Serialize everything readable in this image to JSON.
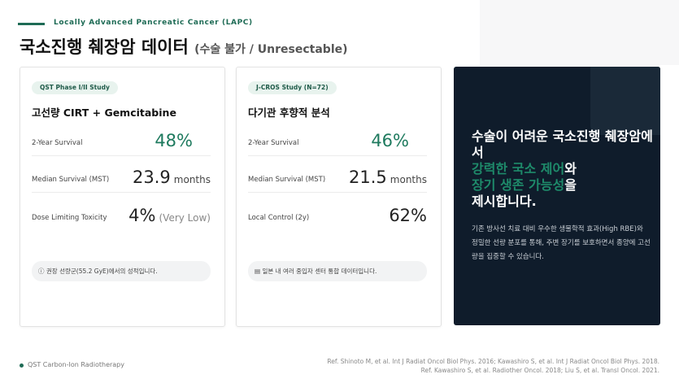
{
  "header": {
    "kicker": "Locally Advanced Pancreatic Cancer (LAPC)",
    "title": "국소진행 췌장암 데이터",
    "subtitle": "(수술 불가 / Unresectable)"
  },
  "cards": [
    {
      "badge": "QST Phase I/II Study",
      "heading": "고선량 CIRT + Gemcitabine",
      "rows": [
        {
          "label": "2-Year Survival",
          "value": "48%"
        },
        {
          "label": "Median Survival (MST)",
          "value": "23.9",
          "unit": "months"
        },
        {
          "label": "Dose Limiting Toxicity",
          "value": "4%",
          "unit": "(Very Low)"
        }
      ],
      "note": "ⓘ 권장 선량군(55.2 GyE)에서의 성적입니다."
    },
    {
      "badge": "J-CROS Study (N=72)",
      "heading": "다기관 후향적 분석",
      "rows": [
        {
          "label": "2-Year Survival",
          "value": "46%"
        },
        {
          "label": "Median Survival (MST)",
          "value": "21.5",
          "unit": "months"
        },
        {
          "label": "Local Control (2y)",
          "value": "62%"
        }
      ],
      "note": "▤ 일본 내 여러 중입자 센터 통합 데이터입니다."
    }
  ],
  "panel": {
    "lead_1": "수술이 어려운 국소진행 췌장암에서",
    "lead_2a": "강력한 국소 제어",
    "lead_2b": "와",
    "lead_3a": "장기 생존 가능성",
    "lead_3b": "을",
    "lead_4": "제시합니다.",
    "body": "기존 방사선 치료 대비 우수한 생물학적 효과(High RBE)와 정밀한 선량 분포를 통해, 주변 장기를 보호하면서 종양에 고선량을 집중할 수 있습니다."
  },
  "footer": {
    "label": "QST Carbon-Ion Radiotherapy",
    "refs": [
      "Ref. Shinoto M, et al. Int J Radiat Oncol Biol Phys. 2016; Kawashiro S, et al. Int J Radiat Oncol Biol Phys. 2018.",
      "Ref. Kawashiro S, et al. Radiother Oncol. 2018; Liu S, et al. Transl Oncol. 2021."
    ]
  }
}
